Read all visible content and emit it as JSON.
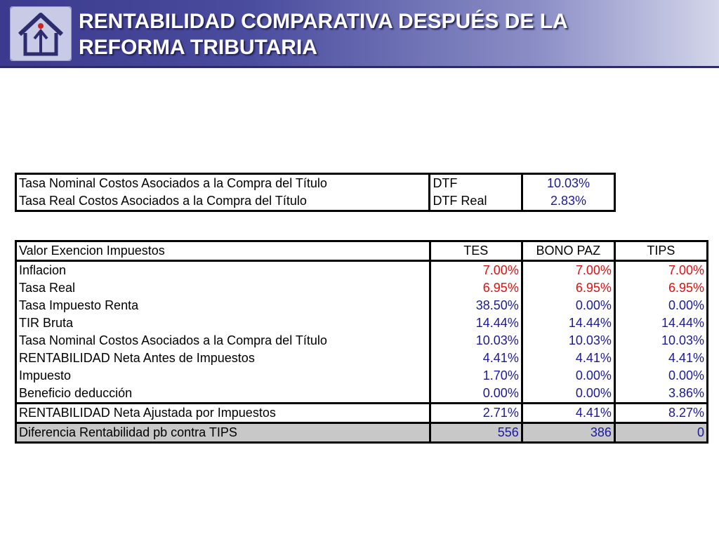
{
  "header": {
    "title_line1": "RENTABILIDAD COMPARATIVA DESPUÉS DE LA",
    "title_line2": "REFORMA TRIBUTARIA",
    "logo_icon": "house-arrow-logo-icon"
  },
  "table1": {
    "rows": [
      {
        "label": "Tasa Nominal Costos Asociados a la Compra del Título",
        "key": "DTF",
        "value": "10.03%"
      },
      {
        "label": "Tasa Real Costos Asociados a la Compra del Título",
        "key": "DTF Real",
        "value": "2.83%"
      }
    ]
  },
  "table2": {
    "headers": [
      "Valor Exencion Impuestos",
      "TES",
      "BONO PAZ",
      "TIPS"
    ],
    "rows": [
      {
        "label": "Inflacion",
        "values": [
          "7.00%",
          "7.00%",
          "7.00%"
        ]
      },
      {
        "label": "Tasa Real",
        "values": [
          "6.95%",
          "6.95%",
          "6.95%"
        ]
      },
      {
        "label": "Tasa Impuesto Renta",
        "values": [
          "38.50%",
          "0.00%",
          "0.00%"
        ]
      },
      {
        "label": "TIR Bruta",
        "values": [
          "14.44%",
          "14.44%",
          "14.44%"
        ]
      },
      {
        "label": "Tasa Nominal Costos Asociados a la Compra del Título",
        "values": [
          "10.03%",
          "10.03%",
          "10.03%"
        ]
      },
      {
        "label": "RENTABILIDAD Neta Antes de Impuestos",
        "values": [
          "4.41%",
          "4.41%",
          "4.41%"
        ]
      },
      {
        "label": "Impuesto",
        "values": [
          "1.70%",
          "0.00%",
          "0.00%"
        ]
      },
      {
        "label": "Beneficio deducción",
        "values": [
          "0.00%",
          "0.00%",
          "3.86%"
        ]
      },
      {
        "label": "RENTABILIDAD Neta Ajustada por Impuestos",
        "values": [
          "2.71%",
          "4.41%",
          "8.27%"
        ]
      },
      {
        "label": "Diferencia Rentabilidad pb contra TIPS",
        "values": [
          "556",
          "386",
          "0"
        ]
      }
    ]
  },
  "colors": {
    "value_blue": "#1a1a9a",
    "value_red": "#e01010",
    "banner_dark": "#3c3a8e",
    "highlight_row": "#c8c8c8"
  }
}
